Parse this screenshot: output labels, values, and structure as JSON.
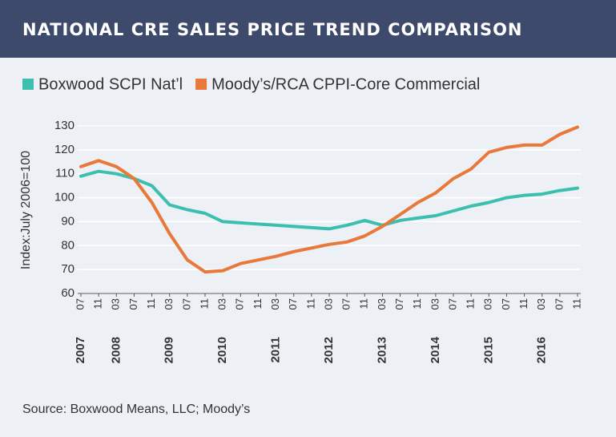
{
  "chart_data": {
    "type": "line",
    "title": "NATIONAL CRE SALES PRICE TREND COMPARISON",
    "y_axis_label": "Index:July 2006=100",
    "source": "Source: Boxwood Means, LLC; Moody’s",
    "categories": [
      "07",
      "11",
      "03",
      "07",
      "11",
      "03",
      "07",
      "11",
      "03",
      "07",
      "11",
      "03",
      "07",
      "11",
      "03",
      "07",
      "11",
      "03",
      "07",
      "11",
      "03",
      "07",
      "11",
      "03",
      "07",
      "11",
      "03",
      "07",
      "11"
    ],
    "years": [
      "2007",
      null,
      "2008",
      null,
      null,
      "2009",
      null,
      null,
      "2010",
      null,
      null,
      "2011",
      null,
      null,
      "2012",
      null,
      null,
      "2013",
      null,
      null,
      "2014",
      null,
      null,
      "2015",
      null,
      null,
      "2016",
      null,
      null
    ],
    "series": [
      {
        "name": "Boxwood SCPI Nat’l",
        "color": "#3cbfae",
        "values": [
          109,
          111,
          110,
          108,
          105,
          97,
          95,
          93.5,
          90,
          89.5,
          89,
          88.5,
          88,
          87.5,
          87,
          88.5,
          90.5,
          88.5,
          90.5,
          91.5,
          92.5,
          94.5,
          96.5,
          98,
          100,
          101,
          101.5,
          103,
          104
        ]
      },
      {
        "name": "Moody’s/RCA CPPI-Core Commercial",
        "color": "#e8793a",
        "values": [
          113,
          115.5,
          113,
          108,
          98,
          85,
          74,
          69,
          69.5,
          72.5,
          74,
          75.5,
          77.5,
          79,
          80.5,
          81.5,
          84,
          88,
          93,
          98,
          102,
          108,
          112,
          119,
          121,
          122,
          122,
          126.5,
          129.5
        ]
      }
    ],
    "ylim": [
      60,
      130
    ],
    "yticks": [
      60,
      70,
      80,
      90,
      100,
      110,
      120,
      130
    ],
    "grid": true
  }
}
